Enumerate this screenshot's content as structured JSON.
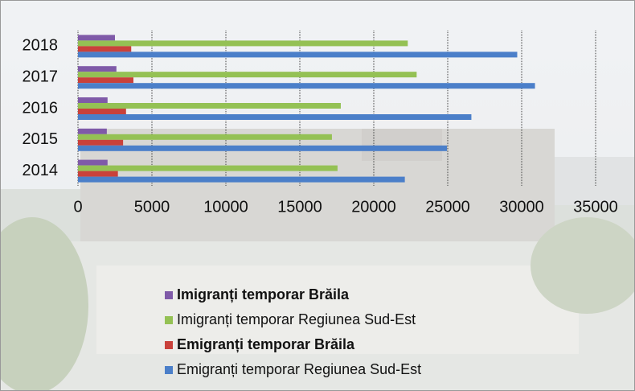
{
  "chart_data": {
    "type": "bar",
    "orientation": "horizontal",
    "categories": [
      "2014",
      "2015",
      "2016",
      "2017",
      "2018"
    ],
    "series": [
      {
        "name": "Imigranți temporar Brăila",
        "color": "#7f5aa8",
        "bold": true,
        "values": [
          2000,
          1950,
          2000,
          2600,
          2500
        ]
      },
      {
        "name": "Imigranți temporar Regiunea Sud-Est",
        "color": "#94c154",
        "bold": false,
        "values": [
          17550,
          17170,
          17770,
          22900,
          22300
        ]
      },
      {
        "name": "Emigranți temporar Brăila",
        "color": "#c9413b",
        "bold": true,
        "values": [
          2700,
          3050,
          3250,
          3750,
          3600
        ]
      },
      {
        "name": "Emigranți temporar Regiunea Sud-Est",
        "color": "#4b7fc9",
        "bold": false,
        "values": [
          22100,
          24950,
          26600,
          30900,
          29700
        ]
      }
    ],
    "xlim": [
      0,
      35000
    ],
    "xticks": [
      0,
      5000,
      10000,
      15000,
      20000,
      25000,
      30000,
      35000
    ],
    "grid": true
  }
}
